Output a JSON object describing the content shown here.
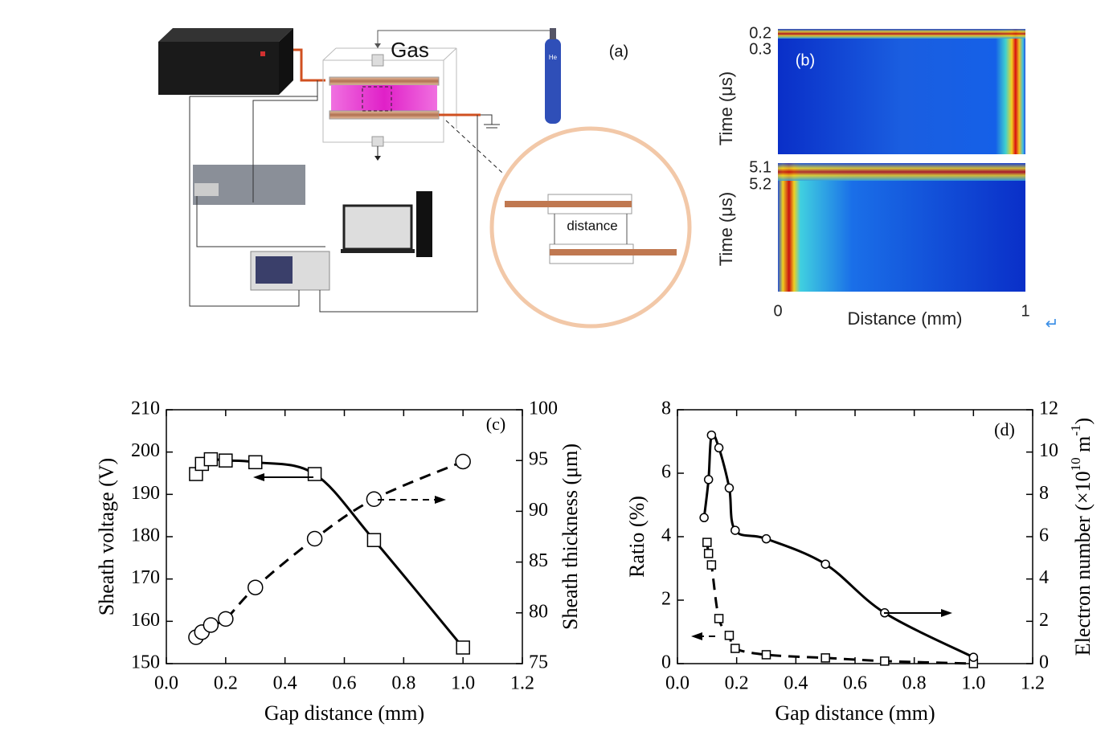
{
  "panel_a": {
    "label": "(a)",
    "gas": "Gas",
    "cylinder": "He",
    "inset": "distance"
  },
  "panel_b": {
    "label": "(b)",
    "top": {
      "ylabel": "Time (μs)",
      "yticks": [
        0.2,
        0.3
      ]
    },
    "bottom": {
      "ylabel": "Time (μs)",
      "yticks": [
        5.1,
        5.2
      ]
    },
    "xlabel": "Distance (mm)",
    "xticks": [
      0,
      1
    ],
    "return_mark": "↵"
  },
  "chart_data": [
    {
      "type": "line",
      "panel_label": "(c)",
      "xlabel": "Gap distance (mm)",
      "ylabel": "Sheath voltage (V)",
      "y2label": [
        "Sheath thickness (μm)"
      ],
      "xlim": [
        0,
        1.2
      ],
      "xticks": [
        {
          "value": 0,
          "label": "0.0"
        },
        0.2,
        0.4,
        0.6,
        0.8,
        {
          "value": 1,
          "label": "1.0"
        },
        1.2
      ],
      "ylim": [
        150,
        210
      ],
      "yticks": [
        150,
        160,
        170,
        180,
        190,
        200,
        210
      ],
      "y2lim": [
        75,
        100
      ],
      "y2ticks": [
        75,
        80,
        85,
        90,
        95,
        100
      ],
      "series": [
        {
          "color": "#000000",
          "marker": "square",
          "dashed": false,
          "x": [
            0.1,
            0.12,
            0.15,
            0.2,
            0.3,
            0.5,
            0.7,
            1.0
          ],
          "values": [
            194.8,
            197.2,
            198.3,
            198.0,
            197.6,
            194.8,
            179.2,
            153.8
          ]
        },
        {
          "color": "#000000",
          "marker": "circle",
          "dashed": true,
          "axis": "y2",
          "x": [
            0.1,
            0.12,
            0.15,
            0.2,
            0.3,
            0.5,
            0.7,
            1.0
          ],
          "values": [
            77.6,
            78.1,
            78.8,
            79.4,
            82.5,
            87.3,
            91.2,
            94.9
          ]
        }
      ]
    },
    {
      "type": "line",
      "panel_label": "(d)",
      "xlabel": "Gap distance (mm)",
      "ylabel": "Ratio (%)",
      "y2label": [
        "Electron number (×10",
        "10",
        " m",
        "-1",
        ")"
      ],
      "xlim": [
        0,
        1.2
      ],
      "xticks": [
        {
          "value": 0,
          "label": "0.0"
        },
        0.2,
        0.4,
        0.6,
        0.8,
        {
          "value": 1,
          "label": "1.0"
        },
        1.2
      ],
      "ylim": [
        0,
        8
      ],
      "yticks": [
        0,
        2,
        4,
        6,
        8
      ],
      "y2lim": [
        0,
        12
      ],
      "y2ticks": [
        0,
        2,
        4,
        6,
        8,
        10,
        12
      ],
      "series": [
        {
          "color": "#000000",
          "marker": "square",
          "dashed": true,
          "x": [
            0.1,
            0.105,
            0.115,
            0.14,
            0.175,
            0.195,
            0.3,
            0.5,
            0.7,
            1.0
          ],
          "values": [
            3.82,
            3.47,
            3.11,
            1.42,
            0.89,
            0.48,
            0.28,
            0.18,
            0.08,
            0.0
          ]
        },
        {
          "color": "#000000",
          "marker": "circle",
          "dashed": false,
          "axis": "y2",
          "x": [
            0.09,
            0.105,
            0.115,
            0.14,
            0.175,
            0.195,
            0.3,
            0.5,
            0.7,
            1.0
          ],
          "values": [
            6.9,
            8.7,
            10.8,
            10.2,
            8.3,
            6.3,
            5.9,
            4.7,
            2.4,
            0.3
          ]
        }
      ]
    }
  ]
}
